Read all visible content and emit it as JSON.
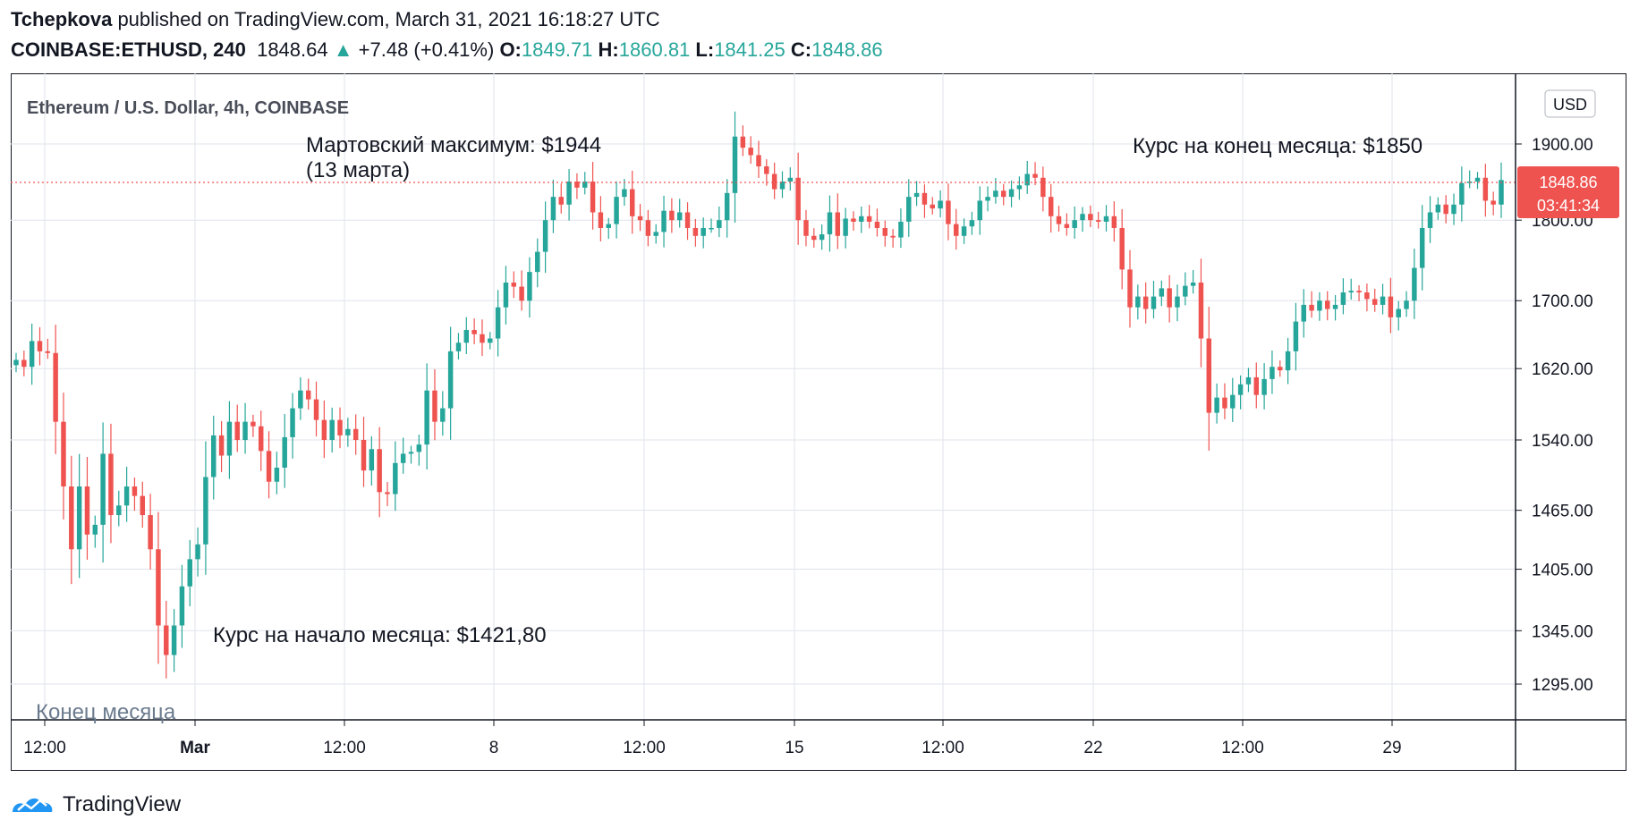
{
  "header": {
    "author": "Tchepkova",
    "published": "published on TradingView.com, March 31, 2021 16:18:27 UTC",
    "symbol": "COINBASE:ETHUSD, 240",
    "last": "1848.64",
    "change": "+7.48 (+0.41%)",
    "o_label": "O:",
    "o_value": "1849.71",
    "h_label": "H:",
    "h_value": "1860.81",
    "l_label": "L:",
    "l_value": "1841.25",
    "c_label": "C:",
    "c_value": "1848.86"
  },
  "legend_title": "Ethereum / U.S. Dollar, 4h, COINBASE",
  "currency_button": "USD",
  "annotations": {
    "max_line1": "Мартовский максимум: $1944",
    "max_line2": "(13 марта)",
    "end_month": "Курс на конец месяца: $1850",
    "start_month": "Курс на начало месяца: $1421,80",
    "bottom_left": "Конец месяца"
  },
  "price_badge": {
    "price": "1848.86",
    "countdown": "03:41:34"
  },
  "footer": {
    "brand": "TradingView"
  },
  "colors": {
    "up": "#26a69a",
    "down": "#ef5350",
    "badge": "#ef5350",
    "grid": "#e0e3eb"
  },
  "chart_data": {
    "type": "candlestick",
    "title": "Ethereum / U.S. Dollar, 4h, COINBASE",
    "y_axis": {
      "scale": "log",
      "ticks": [
        "1900.00",
        "1800.00",
        "1700.00",
        "1620.00",
        "1540.00",
        "1465.00",
        "1405.00",
        "1345.00",
        "1295.00"
      ],
      "range": [
        1265,
        2000
      ]
    },
    "x_axis": {
      "ticks": [
        "12:00",
        "Mar",
        "12:00",
        "8",
        "12:00",
        "15",
        "12:00",
        "22",
        "12:00",
        "29"
      ]
    },
    "current_price": 1848.86,
    "closes": [
      1630,
      1622,
      1652,
      1640,
      1638,
      1560,
      1490,
      1425,
      1490,
      1440,
      1450,
      1525,
      1460,
      1470,
      1490,
      1480,
      1460,
      1425,
      1350,
      1322,
      1350,
      1388,
      1415,
      1430,
      1500,
      1545,
      1523,
      1560,
      1540,
      1560,
      1555,
      1528,
      1495,
      1510,
      1543,
      1575,
      1595,
      1585,
      1562,
      1540,
      1562,
      1545,
      1552,
      1540,
      1507,
      1530,
      1484,
      1482,
      1515,
      1525,
      1527,
      1535,
      1595,
      1560,
      1575,
      1640,
      1650,
      1665,
      1660,
      1650,
      1655,
      1692,
      1722,
      1717,
      1700,
      1735,
      1760,
      1800,
      1830,
      1820,
      1850,
      1842,
      1850,
      1810,
      1790,
      1795,
      1830,
      1840,
      1805,
      1800,
      1780,
      1785,
      1812,
      1800,
      1810,
      1790,
      1780,
      1790,
      1790,
      1800,
      1835,
      1910,
      1895,
      1885,
      1870,
      1860,
      1840,
      1850,
      1855,
      1800,
      1780,
      1775,
      1782,
      1810,
      1780,
      1802,
      1798,
      1805,
      1798,
      1790,
      1780,
      1778,
      1798,
      1830,
      1835,
      1820,
      1815,
      1825,
      1795,
      1780,
      1792,
      1800,
      1825,
      1830,
      1838,
      1830,
      1840,
      1845,
      1860,
      1855,
      1830,
      1805,
      1795,
      1790,
      1800,
      1808,
      1800,
      1798,
      1805,
      1790,
      1738,
      1692,
      1705,
      1690,
      1705,
      1715,
      1692,
      1705,
      1718,
      1722,
      1655,
      1570,
      1587,
      1575,
      1590,
      1602,
      1610,
      1590,
      1608,
      1622,
      1618,
      1640,
      1675,
      1695,
      1688,
      1700,
      1690,
      1695,
      1710,
      1712,
      1710,
      1702,
      1695,
      1705,
      1680,
      1690,
      1700,
      1740,
      1790,
      1810,
      1820,
      1808,
      1820,
      1848,
      1850,
      1855,
      1825,
      1820,
      1852
    ]
  }
}
